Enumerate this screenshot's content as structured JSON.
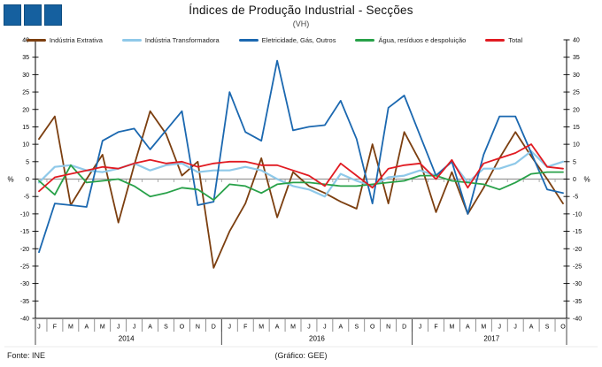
{
  "header": {
    "title": "Índices de Produção Industrial - Secções",
    "subtitle": "(VH)"
  },
  "logo": {
    "color": "#15609f",
    "squares": 3
  },
  "footer": {
    "source": "Fonte: INE",
    "credit": "(Gráfico: GEE)"
  },
  "chart_data": {
    "type": "line",
    "title": "Índices de Produção Industrial - Secções",
    "subtitle": "(VH)",
    "ylabel_left": "%",
    "ylabel_right": "%",
    "ylim": [
      -40,
      40
    ],
    "ytick_step": 5,
    "grid": "zero-line-only",
    "legend_position": "top",
    "zero_line_color": "#999999",
    "axis_color": "#000000",
    "x_groups": [
      {
        "year": "2014",
        "months": [
          "J",
          "F",
          "M",
          "A",
          "M",
          "J",
          "J",
          "A",
          "S",
          "O",
          "N",
          "D"
        ]
      },
      {
        "year": "2016",
        "months": [
          "J",
          "F",
          "M",
          "A",
          "M",
          "J",
          "J",
          "A",
          "S",
          "O",
          "N",
          "D"
        ]
      },
      {
        "year": "2017",
        "months": [
          "J",
          "F",
          "M",
          "A",
          "M",
          "J",
          "J",
          "A",
          "S",
          "O"
        ]
      }
    ],
    "series": [
      {
        "name": "Indústria Extrativa",
        "color": "#7c3f10",
        "values": [
          11.5,
          18,
          -7.5,
          0,
          7,
          -12.5,
          4,
          19.5,
          13,
          1,
          5,
          -25.5,
          -15,
          -7,
          6,
          -11,
          2,
          -2,
          -4,
          -6.5,
          -8.5,
          10,
          -7,
          13.5,
          5,
          -9.5,
          2,
          -10,
          -2.5,
          6,
          13.5,
          6.5,
          0,
          -7
        ]
      },
      {
        "name": "Indústria Transformadora",
        "color": "#8fc9e9",
        "values": [
          -1,
          3.5,
          4,
          2.5,
          2,
          3,
          4.5,
          2.5,
          4,
          4.5,
          2,
          2.5,
          2.5,
          3.5,
          2.5,
          0,
          -2,
          -3,
          -5,
          1.5,
          -0.5,
          -2,
          0.5,
          1,
          2.5,
          1,
          5,
          -1,
          3,
          3,
          4.5,
          8,
          3.5,
          5
        ]
      },
      {
        "name": "Eletricidade, Gás, Outros",
        "color": "#1b68b0",
        "values": [
          -21,
          -7,
          -7.5,
          -8,
          11,
          13.5,
          14.5,
          8.5,
          14,
          19.5,
          -7.5,
          -6.5,
          25,
          13.5,
          11,
          34,
          14,
          15,
          15.5,
          22.5,
          11.5,
          -7,
          20.5,
          24,
          12.5,
          1,
          5,
          -10,
          7,
          18,
          18,
          7.5,
          -3,
          -4
        ]
      },
      {
        "name": "Água, resíduos e despoluição",
        "color": "#28a149",
        "values": [
          -0.5,
          -4.5,
          4,
          -1,
          -0.5,
          0,
          -2,
          -5,
          -4,
          -2.5,
          -3,
          -6,
          -1.5,
          -2,
          -4,
          -1.5,
          -1,
          -1,
          -1.5,
          -2,
          -2,
          -1.5,
          -1,
          -0.5,
          1,
          1,
          -0.5,
          -1,
          -1.5,
          -3,
          -1,
          1.5,
          2,
          2
        ]
      },
      {
        "name": "Total",
        "color": "#e11b22",
        "values": [
          -3.5,
          0.5,
          1.5,
          2.5,
          3.5,
          3,
          4.5,
          5.5,
          4.5,
          5,
          3.5,
          4.5,
          5,
          5,
          4,
          4,
          2.5,
          1,
          -2,
          4.5,
          1,
          -2.5,
          3,
          4,
          4.5,
          0,
          5.5,
          -2.5,
          4.5,
          6,
          7.5,
          10,
          3.5,
          3
        ]
      }
    ]
  }
}
